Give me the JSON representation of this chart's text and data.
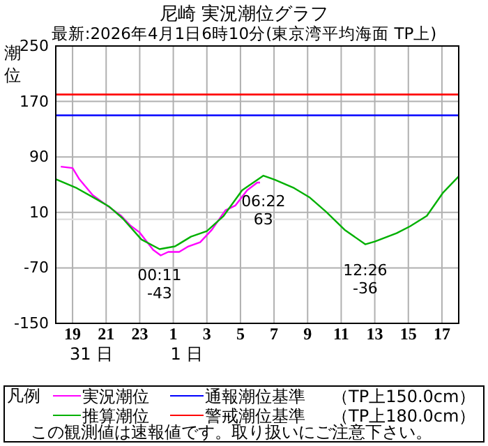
{
  "chart_data": {
    "type": "line",
    "title": "尼崎 実況潮位グラフ",
    "subtitle": "最新:2026年4月1日6時10分(東京湾平均海面 TP上)",
    "ylabel": "潮位",
    "legend_title": "凡例",
    "xlim": [
      "2026-03-31T18:00",
      "2026-04-01T18:00"
    ],
    "ylim": [
      -150,
      250
    ],
    "xticks": [
      {
        "value": "2026-03-31T19:00",
        "label": "19"
      },
      {
        "value": "2026-03-31T21:00",
        "label": "21"
      },
      {
        "value": "2026-03-31T23:00",
        "label": "23"
      },
      {
        "value": "2026-04-01T01:00",
        "label": "1"
      },
      {
        "value": "2026-04-01T03:00",
        "label": "3"
      },
      {
        "value": "2026-04-01T05:00",
        "label": "5"
      },
      {
        "value": "2026-04-01T07:00",
        "label": "7"
      },
      {
        "value": "2026-04-01T09:00",
        "label": "9"
      },
      {
        "value": "2026-04-01T11:00",
        "label": "11"
      },
      {
        "value": "2026-04-01T13:00",
        "label": "13"
      },
      {
        "value": "2026-04-01T15:00",
        "label": "15"
      },
      {
        "value": "2026-04-01T17:00",
        "label": "17"
      }
    ],
    "yticks": [
      -150,
      -70,
      10,
      90,
      170,
      250
    ],
    "grid": true,
    "legend": "bottom",
    "line_style": "solid",
    "marker": "none",
    "series": [
      {
        "name": "実況潮位",
        "color": "#ff00ff",
        "x": [
          "2026-03-31T18:18",
          "2026-03-31T19:00",
          "2026-03-31T19:24",
          "2026-03-31T20:12",
          "2026-03-31T21:03",
          "2026-03-31T21:54",
          "2026-03-31T22:27",
          "2026-03-31T23:00",
          "2026-03-31T23:48",
          "2026-04-01T00:15",
          "2026-04-01T00:42",
          "2026-04-01T01:21",
          "2026-04-01T01:54",
          "2026-04-01T02:36",
          "2026-04-01T03:18",
          "2026-04-01T04:06",
          "2026-04-01T04:42",
          "2026-04-01T05:24",
          "2026-04-01T06:00",
          "2026-04-01T06:10"
        ],
        "values": [
          76,
          74,
          58,
          35,
          20,
          5,
          -9,
          -19,
          -44,
          -52,
          -47,
          -47,
          -39,
          -33,
          -15,
          13,
          20,
          42,
          53,
          53
        ]
      },
      {
        "name": "推算潮位",
        "color": "#00b000",
        "x": [
          "2026-03-31T18:00",
          "2026-03-31T19:15",
          "2026-03-31T20:30",
          "2026-03-31T21:12",
          "2026-03-31T22:00",
          "2026-03-31T23:06",
          "2026-04-01T00:11",
          "2026-04-01T01:06",
          "2026-04-01T02:03",
          "2026-04-01T03:00",
          "2026-04-01T04:00",
          "2026-04-01T05:06",
          "2026-04-01T06:22",
          "2026-04-01T07:04",
          "2026-04-01T08:12",
          "2026-04-01T09:06",
          "2026-04-01T10:06",
          "2026-04-01T11:12",
          "2026-04-01T12:26",
          "2026-04-01T13:00",
          "2026-04-01T14:18",
          "2026-04-01T15:06",
          "2026-04-01T16:06",
          "2026-04-01T17:03",
          "2026-04-01T18:00"
        ],
        "values": [
          58,
          45,
          28,
          18,
          1,
          -29,
          -43,
          -39,
          -25,
          -17,
          5,
          42,
          63,
          57,
          45,
          32,
          11,
          -15,
          -36,
          -32,
          -20,
          -10,
          5,
          38,
          62
        ]
      }
    ],
    "ref_lines": [
      {
        "axis": "y",
        "value": 150,
        "label": "通報潮位基準",
        "color": "#0000ff"
      },
      {
        "axis": "y",
        "value": 180,
        "label": "警戒潮位基準",
        "color": "#ff0000"
      },
      {
        "axis": "y",
        "value": 0,
        "label": null,
        "color": "#e0e0e0"
      }
    ],
    "annotations": [
      {
        "text": "00:11\n-43",
        "x": "2026-04-01T00:11",
        "y": -43
      },
      {
        "text": "06:22\n63",
        "x": "2026-04-01T06:22",
        "y": 63
      },
      {
        "text": "12:26\n-36",
        "x": "2026-04-01T12:26",
        "y": -36
      },
      "31 日",
      "1 日",
      "（TP上150.0cm）",
      "（TP上180.0cm）",
      "この観測値は速報値です。取り扱いにご注意下さい。"
    ]
  }
}
